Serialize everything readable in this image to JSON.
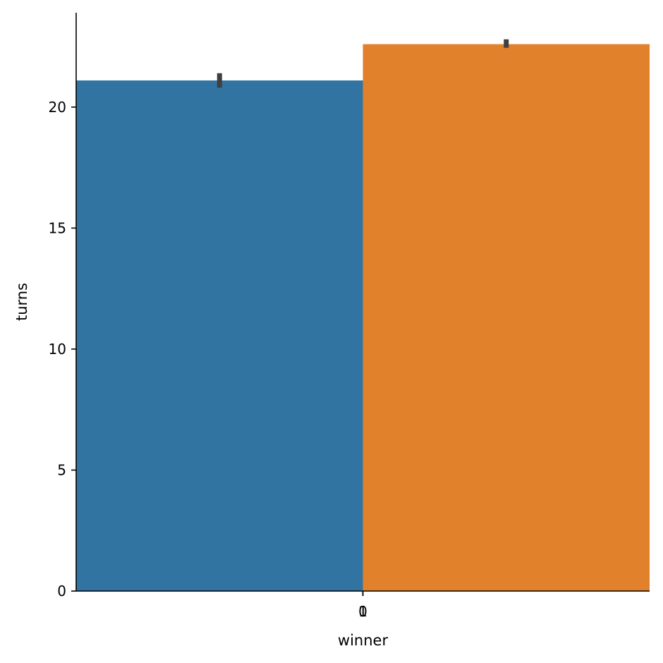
{
  "chart_data": {
    "type": "bar",
    "title": "",
    "xlabel": "winner",
    "ylabel": "turns",
    "categories": [
      "0",
      "1"
    ],
    "bar_positions": [
      -0.2,
      0.2
    ],
    "values": [
      21.1,
      22.6
    ],
    "error_low": [
      20.8,
      22.45
    ],
    "error_high": [
      21.4,
      22.8
    ],
    "colors": [
      "#3274a1",
      "#e1812c"
    ],
    "error_color": "#3f3f3f",
    "ylim": [
      0,
      23.9
    ],
    "xlim": [
      -0.4,
      0.4
    ],
    "yticks": [
      0,
      5,
      10,
      15,
      20
    ],
    "ytick_labels": [
      "0",
      "5",
      "10",
      "15",
      "20"
    ],
    "grid": false,
    "legend": "none"
  }
}
